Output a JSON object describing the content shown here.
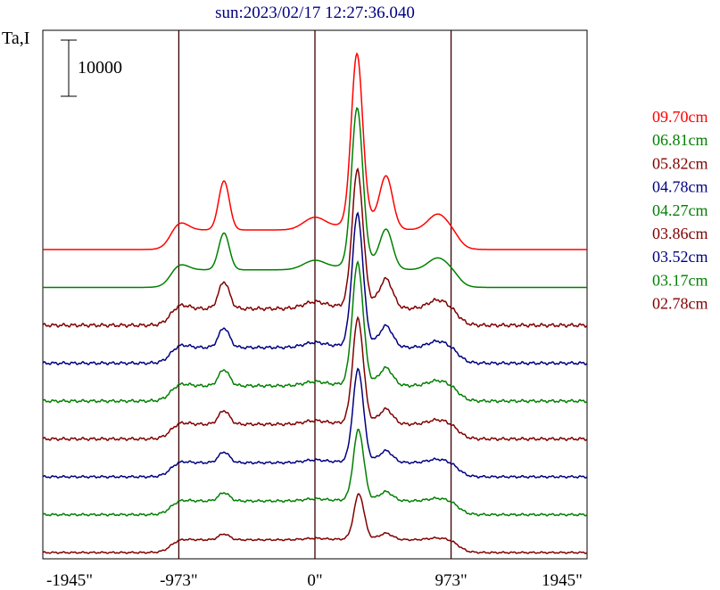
{
  "chart_data": {
    "type": "line",
    "title": "sun:2023/02/17 12:27:36.040",
    "ylabel": "Ta,I",
    "scale_bar_label": "10000",
    "x_tick_labels": [
      "-1945\"",
      "-973\"",
      "0\"",
      "973\"",
      "1945\""
    ],
    "x_ticks": [
      -1945,
      -973,
      0,
      973,
      1945
    ],
    "xlim": [
      -1945,
      1945
    ],
    "vertical_lines": [
      -973,
      0,
      973
    ],
    "colors": {
      "red": "#ff0000",
      "green": "#008000",
      "darkred": "#800000",
      "blue": "#000080",
      "title": "#000080",
      "frame": "#000000",
      "vline": "#3a0000"
    },
    "series": [
      {
        "name": "09.70cm",
        "color": "#ff0000",
        "peak_scale": 1.0,
        "limb_scale": 1.0,
        "feature_scale": 1.0,
        "noise": 0.0
      },
      {
        "name": "06.81cm",
        "color": "#008000",
        "peak_scale": 0.93,
        "limb_scale": 0.9,
        "feature_scale": 0.75,
        "noise": 0.0
      },
      {
        "name": "05.82cm",
        "color": "#800000",
        "peak_scale": 0.8,
        "limb_scale": 0.85,
        "feature_scale": 0.55,
        "noise": 0.6
      },
      {
        "name": "04.78cm",
        "color": "#000080",
        "peak_scale": 0.78,
        "limb_scale": 0.8,
        "feature_scale": 0.4,
        "noise": 0.5
      },
      {
        "name": "04.27cm",
        "color": "#008000",
        "peak_scale": 0.72,
        "limb_scale": 0.78,
        "feature_scale": 0.33,
        "noise": 0.5
      },
      {
        "name": "03.86cm",
        "color": "#800000",
        "peak_scale": 0.62,
        "limb_scale": 0.75,
        "feature_scale": 0.28,
        "noise": 0.5
      },
      {
        "name": "03.52cm",
        "color": "#000080",
        "peak_scale": 0.55,
        "limb_scale": 0.72,
        "feature_scale": 0.22,
        "noise": 0.4
      },
      {
        "name": "03.17cm",
        "color": "#008000",
        "peak_scale": 0.42,
        "limb_scale": 0.7,
        "feature_scale": 0.17,
        "noise": 0.4
      },
      {
        "name": "02.78cm",
        "color": "#800000",
        "peak_scale": 0.27,
        "limb_scale": 0.65,
        "feature_scale": 0.12,
        "noise": 0.3
      }
    ]
  }
}
